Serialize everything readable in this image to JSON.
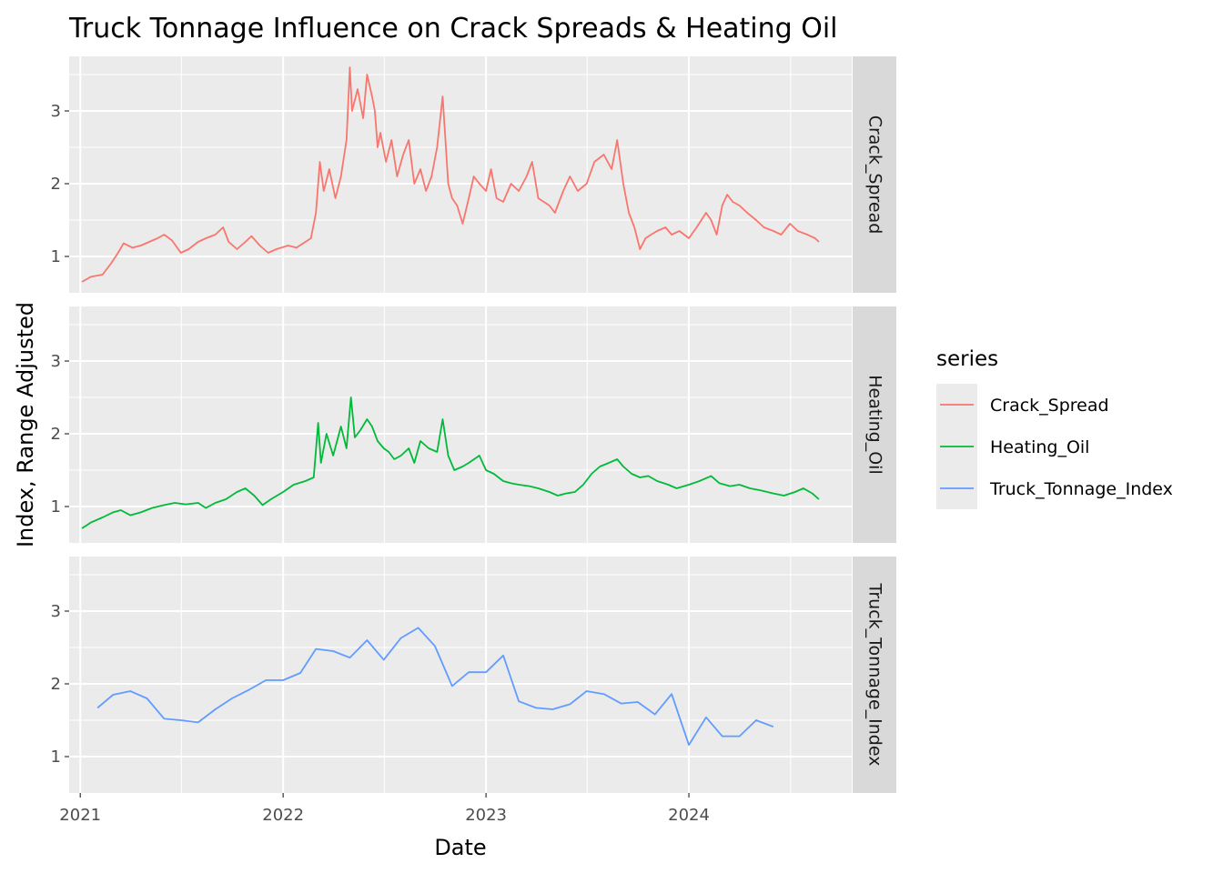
{
  "chart_data": {
    "type": "line",
    "title": "Truck Tonnage Influence on Crack Spreads & Heating Oil",
    "xlabel": "Date",
    "ylabel": "Index, Range Adjusted",
    "x_ticks": [
      "2021",
      "2022",
      "2023",
      "2024"
    ],
    "y_ticks": [
      "1",
      "2",
      "3"
    ],
    "ylim": [
      0.5,
      3.75
    ],
    "xlim": [
      "2020-12-12",
      "2024-10-20"
    ],
    "grid": true,
    "facet": "rows by series",
    "legend": {
      "title": "series",
      "position": "right"
    },
    "series": [
      {
        "name": "Crack_Spread",
        "color": "#F8766D",
        "x": [
          "2021-01-04",
          "2021-01-20",
          "2021-02-10",
          "2021-02-25",
          "2021-03-10",
          "2021-03-20",
          "2021-04-05",
          "2021-04-20",
          "2021-05-05",
          "2021-05-20",
          "2021-06-01",
          "2021-06-15",
          "2021-07-01",
          "2021-07-15",
          "2021-08-01",
          "2021-08-15",
          "2021-09-01",
          "2021-09-15",
          "2021-09-25",
          "2021-10-10",
          "2021-10-25",
          "2021-11-05",
          "2021-11-20",
          "2021-12-05",
          "2021-12-20",
          "2022-01-10",
          "2022-01-25",
          "2022-02-10",
          "2022-02-20",
          "2022-03-01",
          "2022-03-08",
          "2022-03-15",
          "2022-03-25",
          "2022-04-05",
          "2022-04-15",
          "2022-04-25",
          "2022-05-01",
          "2022-05-05",
          "2022-05-15",
          "2022-05-25",
          "2022-06-01",
          "2022-06-10",
          "2022-06-15",
          "2022-06-20",
          "2022-06-25",
          "2022-07-05",
          "2022-07-15",
          "2022-07-25",
          "2022-08-05",
          "2022-08-15",
          "2022-08-25",
          "2022-09-05",
          "2022-09-15",
          "2022-09-25",
          "2022-10-05",
          "2022-10-15",
          "2022-10-25",
          "2022-11-01",
          "2022-11-10",
          "2022-11-20",
          "2022-12-01",
          "2022-12-10",
          "2022-12-20",
          "2023-01-01",
          "2023-01-10",
          "2023-01-20",
          "2023-02-01",
          "2023-02-15",
          "2023-03-01",
          "2023-03-15",
          "2023-03-25",
          "2023-04-05",
          "2023-04-15",
          "2023-04-25",
          "2023-05-05",
          "2023-05-20",
          "2023-06-01",
          "2023-06-15",
          "2023-07-01",
          "2023-07-15",
          "2023-08-01",
          "2023-08-15",
          "2023-08-25",
          "2023-09-05",
          "2023-09-15",
          "2023-09-25",
          "2023-10-05",
          "2023-10-15",
          "2023-10-25",
          "2023-11-05",
          "2023-11-20",
          "2023-12-01",
          "2023-12-15",
          "2024-01-01",
          "2024-01-15",
          "2024-02-01",
          "2024-02-10",
          "2024-02-20",
          "2024-03-01",
          "2024-03-10",
          "2024-03-20",
          "2024-04-01",
          "2024-04-15",
          "2024-05-01",
          "2024-05-15",
          "2024-06-01",
          "2024-06-15",
          "2024-07-01",
          "2024-07-15",
          "2024-08-01",
          "2024-08-15",
          "2024-08-22"
        ],
        "values": [
          0.65,
          0.72,
          0.75,
          0.9,
          1.05,
          1.18,
          1.12,
          1.15,
          1.2,
          1.25,
          1.3,
          1.22,
          1.05,
          1.1,
          1.2,
          1.25,
          1.3,
          1.4,
          1.2,
          1.1,
          1.2,
          1.28,
          1.15,
          1.05,
          1.1,
          1.15,
          1.12,
          1.2,
          1.25,
          1.6,
          2.3,
          1.9,
          2.2,
          1.8,
          2.1,
          2.6,
          3.6,
          3.0,
          3.3,
          2.9,
          3.5,
          3.2,
          3.0,
          2.5,
          2.7,
          2.3,
          2.6,
          2.1,
          2.4,
          2.6,
          2.0,
          2.2,
          1.9,
          2.1,
          2.5,
          3.2,
          2.0,
          1.8,
          1.7,
          1.45,
          1.8,
          2.1,
          2.0,
          1.9,
          2.2,
          1.8,
          1.75,
          2.0,
          1.9,
          2.1,
          2.3,
          1.8,
          1.75,
          1.7,
          1.6,
          1.9,
          2.1,
          1.9,
          2.0,
          2.3,
          2.4,
          2.2,
          2.6,
          2.0,
          1.6,
          1.4,
          1.1,
          1.25,
          1.3,
          1.35,
          1.4,
          1.3,
          1.35,
          1.25,
          1.4,
          1.6,
          1.5,
          1.3,
          1.7,
          1.85,
          1.75,
          1.7,
          1.6,
          1.5,
          1.4,
          1.35,
          1.3,
          1.45,
          1.35,
          1.3,
          1.25,
          1.2
        ]
      },
      {
        "name": "Heating_Oil",
        "color": "#00BA38",
        "x": [
          "2021-01-04",
          "2021-01-20",
          "2021-02-10",
          "2021-03-01",
          "2021-03-15",
          "2021-04-01",
          "2021-04-20",
          "2021-05-10",
          "2021-06-01",
          "2021-06-20",
          "2021-07-10",
          "2021-08-01",
          "2021-08-15",
          "2021-09-01",
          "2021-09-20",
          "2021-10-10",
          "2021-10-25",
          "2021-11-10",
          "2021-11-25",
          "2021-12-10",
          "2022-01-01",
          "2022-01-20",
          "2022-02-10",
          "2022-02-25",
          "2022-03-05",
          "2022-03-10",
          "2022-03-20",
          "2022-04-01",
          "2022-04-15",
          "2022-04-25",
          "2022-05-03",
          "2022-05-10",
          "2022-05-20",
          "2022-06-01",
          "2022-06-10",
          "2022-06-20",
          "2022-07-01",
          "2022-07-10",
          "2022-07-20",
          "2022-08-01",
          "2022-08-15",
          "2022-08-25",
          "2022-09-05",
          "2022-09-20",
          "2022-10-05",
          "2022-10-15",
          "2022-10-25",
          "2022-11-05",
          "2022-11-20",
          "2022-12-01",
          "2022-12-20",
          "2023-01-01",
          "2023-01-15",
          "2023-02-01",
          "2023-02-15",
          "2023-03-01",
          "2023-03-20",
          "2023-04-05",
          "2023-04-25",
          "2023-05-10",
          "2023-05-25",
          "2023-06-10",
          "2023-06-25",
          "2023-07-10",
          "2023-07-25",
          "2023-08-10",
          "2023-08-25",
          "2023-09-05",
          "2023-09-20",
          "2023-10-05",
          "2023-10-20",
          "2023-11-05",
          "2023-11-25",
          "2023-12-10",
          "2024-01-01",
          "2024-01-20",
          "2024-02-10",
          "2024-02-25",
          "2024-03-15",
          "2024-04-01",
          "2024-04-20",
          "2024-05-10",
          "2024-06-01",
          "2024-06-20",
          "2024-07-10",
          "2024-07-25",
          "2024-08-10",
          "2024-08-22"
        ],
        "values": [
          0.7,
          0.78,
          0.85,
          0.92,
          0.95,
          0.88,
          0.92,
          0.98,
          1.02,
          1.05,
          1.03,
          1.05,
          0.98,
          1.05,
          1.1,
          1.2,
          1.25,
          1.15,
          1.02,
          1.1,
          1.2,
          1.3,
          1.35,
          1.4,
          2.15,
          1.6,
          2.0,
          1.7,
          2.1,
          1.8,
          2.5,
          1.95,
          2.05,
          2.2,
          2.1,
          1.9,
          1.8,
          1.75,
          1.65,
          1.7,
          1.8,
          1.6,
          1.9,
          1.8,
          1.75,
          2.2,
          1.7,
          1.5,
          1.55,
          1.6,
          1.7,
          1.5,
          1.45,
          1.35,
          1.32,
          1.3,
          1.28,
          1.25,
          1.2,
          1.15,
          1.18,
          1.2,
          1.3,
          1.45,
          1.55,
          1.6,
          1.65,
          1.55,
          1.45,
          1.4,
          1.42,
          1.35,
          1.3,
          1.25,
          1.3,
          1.35,
          1.42,
          1.32,
          1.28,
          1.3,
          1.25,
          1.22,
          1.18,
          1.15,
          1.2,
          1.25,
          1.18,
          1.1
        ]
      },
      {
        "name": "Truck_Tonnage_Index",
        "color": "#619CFF",
        "x": [
          "2021-02-01",
          "2021-03-01",
          "2021-04-01",
          "2021-05-01",
          "2021-06-01",
          "2021-07-01",
          "2021-08-01",
          "2021-09-01",
          "2021-10-01",
          "2021-11-01",
          "2021-12-01",
          "2022-01-01",
          "2022-02-01",
          "2022-03-01",
          "2022-04-01",
          "2022-05-01",
          "2022-06-01",
          "2022-07-01",
          "2022-08-01",
          "2022-09-01",
          "2022-10-01",
          "2022-11-01",
          "2022-12-01",
          "2023-01-01",
          "2023-02-01",
          "2023-03-01",
          "2023-04-01",
          "2023-05-01",
          "2023-06-01",
          "2023-07-01",
          "2023-08-01",
          "2023-09-01",
          "2023-10-01",
          "2023-11-01",
          "2023-12-01",
          "2024-01-01",
          "2024-02-01",
          "2024-03-01",
          "2024-04-01",
          "2024-05-01",
          "2024-06-01"
        ],
        "values": [
          1.67,
          1.85,
          1.9,
          1.8,
          1.52,
          1.5,
          1.47,
          1.65,
          1.8,
          1.92,
          2.05,
          2.05,
          2.15,
          2.48,
          2.45,
          2.36,
          2.6,
          2.33,
          2.63,
          2.77,
          2.52,
          1.97,
          2.16,
          2.16,
          2.39,
          1.76,
          1.67,
          1.65,
          1.72,
          1.9,
          1.86,
          1.73,
          1.75,
          1.58,
          1.86,
          1.16,
          1.54,
          1.28,
          1.28,
          1.5,
          1.41
        ]
      }
    ]
  }
}
